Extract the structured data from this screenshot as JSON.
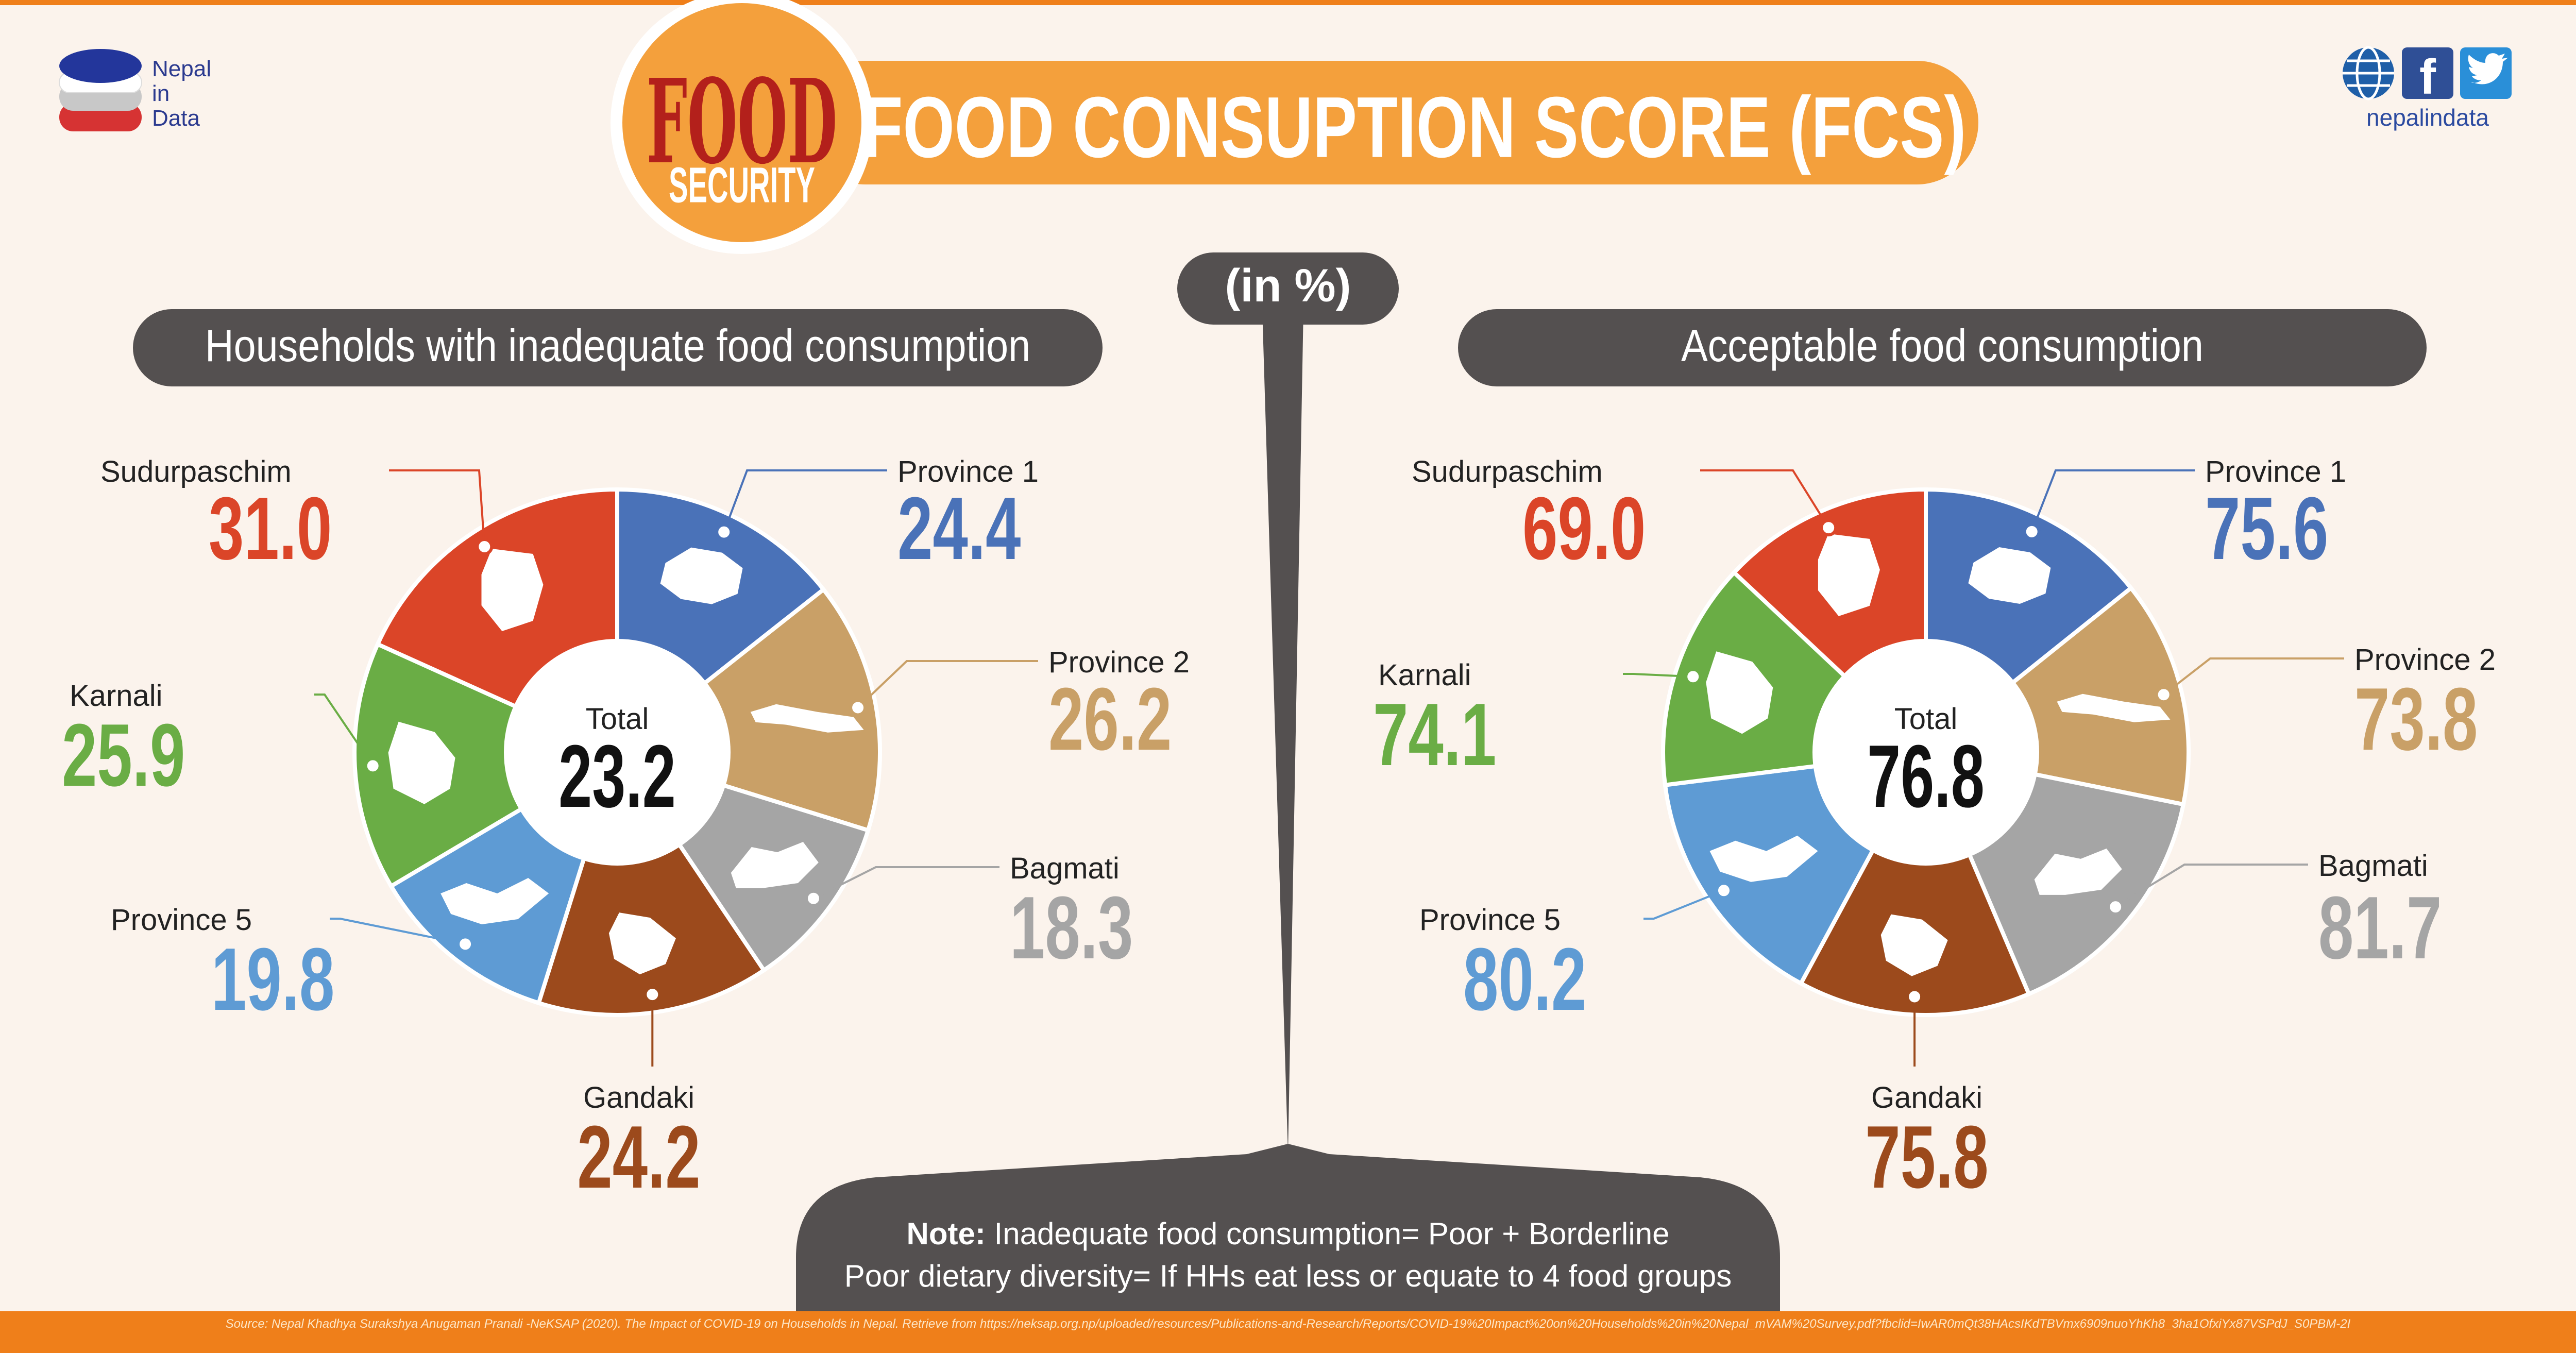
{
  "brand": {
    "logo_line1": "Nepal",
    "logo_line2": "in",
    "logo_line3": "Data",
    "social_handle": "nepalindata",
    "icons": [
      "globe-icon",
      "facebook-icon",
      "twitter-icon"
    ]
  },
  "header": {
    "badge_word1": "FOOD",
    "badge_word2": "SECURITY",
    "title": "FOOD CONSUPTION SCORE (FCS)",
    "unit_label": "(in %)"
  },
  "colors": {
    "orange": "#ef7f1a",
    "header_orange": "#f4a03c",
    "pill_gray": "#545050",
    "province1": "#4a72b8",
    "province2": "#c9a067",
    "bagmati": "#a5a5a5",
    "gandaki": "#9c4a1c",
    "province5": "#5e9bd4",
    "karnali": "#6aad45",
    "sudurpaschim": "#db4528"
  },
  "chart_data": [
    {
      "type": "pie",
      "title": "Households with inadequate food consumption",
      "center_label": "Total",
      "center_value": "23.2",
      "categories": [
        "Province 1",
        "Province 2",
        "Bagmati",
        "Gandaki",
        "Province 5",
        "Karnali",
        "Sudurpaschim"
      ],
      "values": [
        24.4,
        26.2,
        18.3,
        24.2,
        19.8,
        25.9,
        31.0
      ],
      "value_labels": [
        "24.4",
        "26.2",
        "18.3",
        "24.2",
        "19.8",
        "25.9",
        "31.0"
      ]
    },
    {
      "type": "pie",
      "title": "Acceptable food consumption",
      "center_label": "Total",
      "center_value": "76.8",
      "categories": [
        "Province 1",
        "Province 2",
        "Bagmati",
        "Gandaki",
        "Province 5",
        "Karnali",
        "Sudurpaschim"
      ],
      "values": [
        75.6,
        73.8,
        81.7,
        75.8,
        80.2,
        74.1,
        69.0
      ],
      "value_labels": [
        "75.6",
        "73.8",
        "81.7",
        "75.8",
        "80.2",
        "74.1",
        "69.0"
      ]
    }
  ],
  "note": {
    "label": "Note:",
    "line1": " Inadequate food consumption= Poor + Borderline",
    "line2": "Poor dietary diversity= If HHs eat less or equate to 4 food groups"
  },
  "footer": {
    "source": "Source: Nepal Khadhya Surakshya Anugaman Pranali -NeKSAP (2020). The Impact of COVID-19 on Households in Nepal. Retrieve from https://neksap.org.np/uploaded/resources/Publications-and-Research/Reports/COVID-19%20Impact%20on%20Households%20in%20Nepal_mVAM%20Survey.pdf?fbclid=IwAR0mQt38HAcsIKdTBVmx6909nuoYhKh8_3ha1OfxiYx87VSPdJ_S0PBM-2I"
  }
}
